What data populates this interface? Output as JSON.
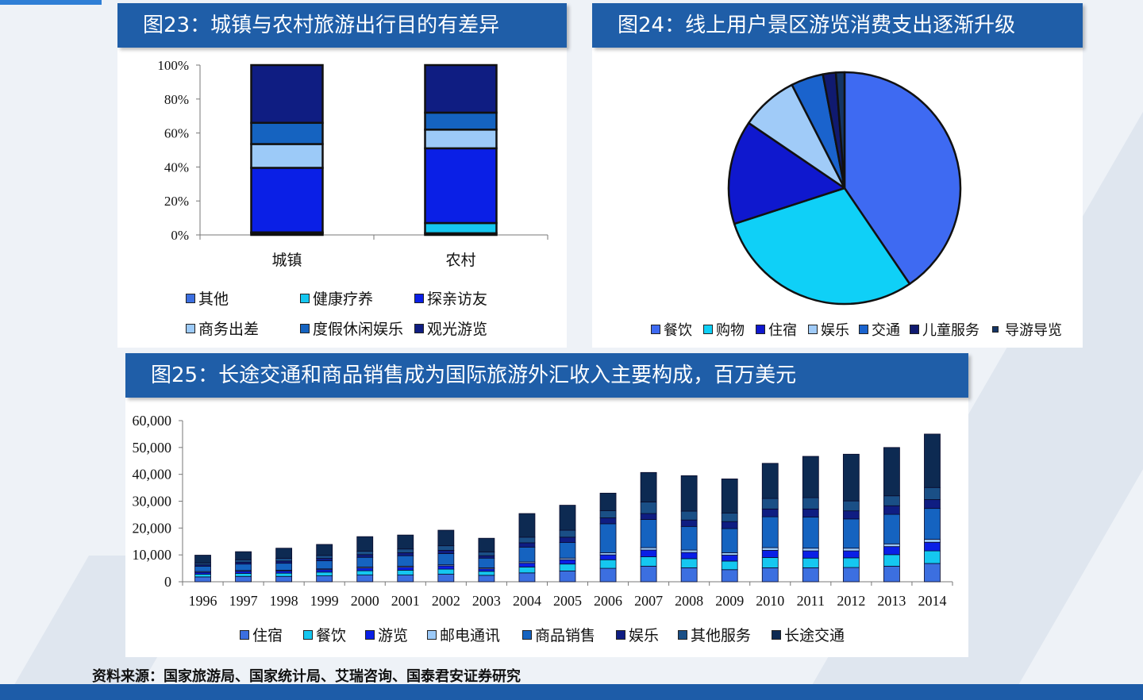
{
  "source": "资料来源：国家旅游局、国家统计局、艾瑞咨询、国泰君安证券研究",
  "chart_data": [
    {
      "type": "bar",
      "stacked": true,
      "percent": true,
      "title": "图23：城镇与农村旅游出行目的有差异",
      "categories": [
        "城镇",
        "农村"
      ],
      "yticks": [
        "0%",
        "20%",
        "40%",
        "60%",
        "80%",
        "100%"
      ],
      "ylim": [
        0,
        100
      ],
      "series": [
        {
          "name": "其他",
          "color": "#3c6fe0",
          "values": [
            1,
            1
          ]
        },
        {
          "name": "健康疗养",
          "color": "#15c7f0",
          "values": [
            0.5,
            6
          ]
        },
        {
          "name": "探亲访友",
          "color": "#0a1fe6",
          "values": [
            38,
            44
          ]
        },
        {
          "name": "商务出差",
          "color": "#9ccaf8",
          "values": [
            14,
            11
          ]
        },
        {
          "name": "度假休闲娱乐",
          "color": "#1563c0",
          "values": [
            12.5,
            10
          ]
        },
        {
          "name": "观光游览",
          "color": "#0f1d82",
          "values": [
            34,
            28
          ]
        }
      ]
    },
    {
      "type": "pie",
      "title": "图24：线上用户景区游览消费支出逐渐升级",
      "series": [
        {
          "name": "餐饮",
          "color": "#3e6af2",
          "value": 40.5
        },
        {
          "name": "购物",
          "color": "#0fd0f7",
          "value": 29.5
        },
        {
          "name": "住宿",
          "color": "#0f18ce",
          "value": 14.5
        },
        {
          "name": "娱乐",
          "color": "#a0cbf8",
          "value": 8
        },
        {
          "name": "交通",
          "color": "#1a63cd",
          "value": 4.5
        },
        {
          "name": "儿童服务",
          "color": "#101a70",
          "value": 1.8
        },
        {
          "name": "导游导览",
          "color": "#143566",
          "value": 1.2
        }
      ]
    },
    {
      "type": "bar",
      "stacked": true,
      "title": "图25：长途交通和商品销售成为国际旅游外汇收入主要构成，百万美元",
      "categories": [
        "1996",
        "1997",
        "1998",
        "1999",
        "2000",
        "2001",
        "2002",
        "2003",
        "2004",
        "2005",
        "2006",
        "2007",
        "2008",
        "2009",
        "2010",
        "2011",
        "2012",
        "2013",
        "2014"
      ],
      "yticks": [
        "0",
        "10,000",
        "20,000",
        "30,000",
        "40,000",
        "50,000",
        "60,000"
      ],
      "ylim": [
        0,
        60000
      ],
      "series": [
        {
          "name": "住宿",
          "color": "#3c6fe0",
          "values": [
            1800,
            2000,
            2000,
            2200,
            2500,
            2500,
            2800,
            2400,
            3300,
            4000,
            5000,
            5800,
            5200,
            4500,
            5200,
            5200,
            5300,
            5800,
            6800
          ]
        },
        {
          "name": "餐饮",
          "color": "#15c7f0",
          "values": [
            1000,
            1100,
            1200,
            1400,
            1600,
            1800,
            1900,
            1500,
            2200,
            2600,
            3200,
            3500,
            3400,
            3200,
            3800,
            3600,
            3600,
            4300,
            4700
          ]
        },
        {
          "name": "游览",
          "color": "#0a1fe6",
          "values": [
            700,
            800,
            800,
            900,
            1000,
            1100,
            1200,
            900,
            1400,
            1600,
            1800,
            2500,
            2300,
            2200,
            2700,
            2700,
            2600,
            3000,
            3200
          ]
        },
        {
          "name": "邮电通讯",
          "color": "#9ccaf8",
          "values": [
            300,
            300,
            300,
            300,
            400,
            400,
            400,
            400,
            500,
            600,
            800,
            900,
            900,
            900,
            1000,
            1000,
            1000,
            1000,
            1100
          ]
        },
        {
          "name": "商品销售",
          "color": "#1563c0",
          "values": [
            2000,
            2400,
            2600,
            3000,
            3600,
            3900,
            4200,
            3600,
            5500,
            5800,
            10800,
            10500,
            8800,
            9000,
            11500,
            11600,
            10900,
            11000,
            11500
          ]
        },
        {
          "name": "娱乐",
          "color": "#0f1d82",
          "values": [
            500,
            700,
            800,
            900,
            1000,
            1100,
            1200,
            900,
            1600,
            2000,
            2200,
            2200,
            2400,
            2600,
            2900,
            3000,
            3000,
            3200,
            3300
          ]
        },
        {
          "name": "其他服务",
          "color": "#1a4f86",
          "values": [
            700,
            900,
            1000,
            1100,
            1300,
            1400,
            1700,
            1400,
            2100,
            2600,
            2700,
            4300,
            3300,
            3200,
            3900,
            4200,
            3700,
            3700,
            4500
          ]
        },
        {
          "name": "长途交通",
          "color": "#0d2a52",
          "values": [
            2900,
            3000,
            3800,
            4100,
            5400,
            5200,
            5800,
            5100,
            8800,
            9300,
            6500,
            11000,
            13200,
            12700,
            13100,
            15400,
            17400,
            18000,
            19900
          ]
        }
      ]
    }
  ]
}
